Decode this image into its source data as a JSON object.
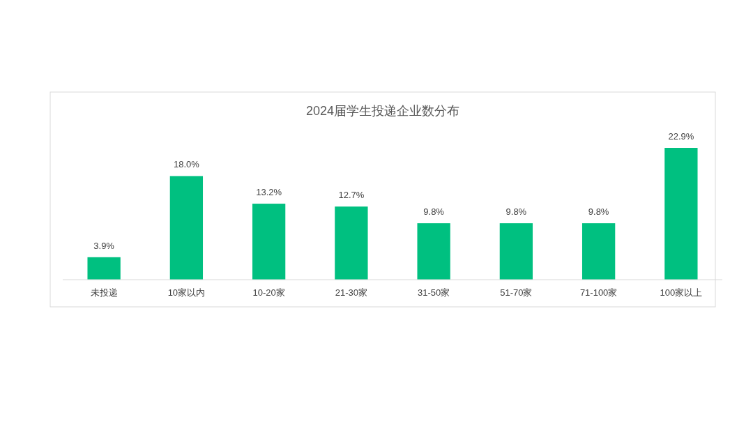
{
  "chart_data": {
    "type": "bar",
    "title": "2024届学生投递企业数分布",
    "categories": [
      "未投递",
      "10家以内",
      "10-20家",
      "21-30家",
      "31-50家",
      "51-70家",
      "71-100家",
      "100家以上"
    ],
    "values": [
      3.9,
      18.0,
      13.2,
      12.7,
      9.8,
      9.8,
      9.8,
      22.9
    ],
    "value_labels": [
      "3.9%",
      "18.0%",
      "13.2%",
      "12.7%",
      "9.8%",
      "9.8%",
      "9.8%",
      "22.9%"
    ],
    "color": "#00c080"
  }
}
